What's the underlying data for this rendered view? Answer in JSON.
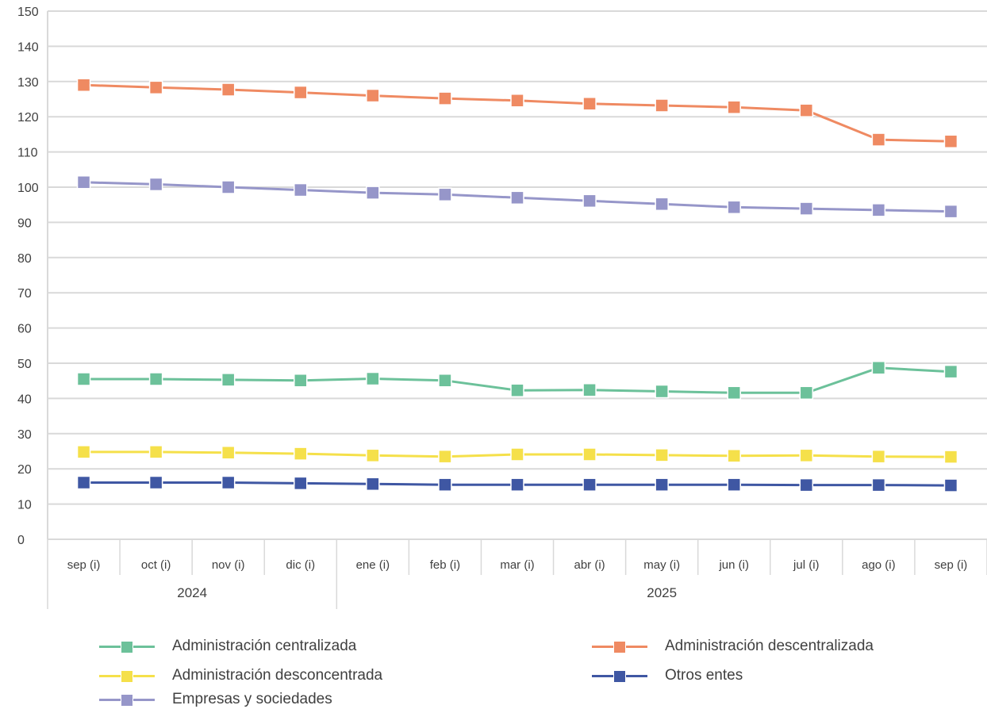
{
  "chart_data": {
    "type": "line",
    "title": "",
    "xlabel": "",
    "ylabel": "",
    "ylim": [
      0,
      150
    ],
    "yticks": [
      0,
      10,
      20,
      30,
      40,
      50,
      60,
      70,
      80,
      90,
      100,
      110,
      120,
      130,
      140,
      150
    ],
    "categories": [
      "sep (i)",
      "oct (i)",
      "nov (i)",
      "dic (i)",
      "ene (i)",
      "feb (i)",
      "mar (i)",
      "abr (i)",
      "may (i)",
      "jun (i)",
      "jul (i)",
      "ago (i)",
      "sep (i)"
    ],
    "year_groups": [
      {
        "label": "2024",
        "count": 4
      },
      {
        "label": "2025",
        "count": 9
      }
    ],
    "grid": true,
    "legend_position": "bottom",
    "series": [
      {
        "name": "Administración centralizada",
        "color": "#6cc19a",
        "values": [
          45.5,
          45.5,
          45.3,
          45.1,
          45.6,
          45.1,
          42.3,
          42.4,
          42.0,
          41.6,
          41.6,
          48.7,
          47.6
        ]
      },
      {
        "name": "Administración descentralizada",
        "color": "#ef8a62",
        "values": [
          129.0,
          128.3,
          127.7,
          126.9,
          126.0,
          125.2,
          124.6,
          123.7,
          123.2,
          122.7,
          121.8,
          113.5,
          113.0
        ]
      },
      {
        "name": "Administración desconcentrada",
        "color": "#f5e04a",
        "values": [
          24.8,
          24.8,
          24.6,
          24.3,
          23.8,
          23.5,
          24.1,
          24.1,
          23.9,
          23.7,
          23.8,
          23.5,
          23.4
        ]
      },
      {
        "name": "Otros entes",
        "color": "#3f57a3",
        "values": [
          16.1,
          16.1,
          16.1,
          15.9,
          15.7,
          15.5,
          15.5,
          15.5,
          15.5,
          15.5,
          15.4,
          15.4,
          15.3
        ]
      },
      {
        "name": "Empresas y sociedades",
        "color": "#9696c9",
        "values": [
          101.4,
          100.8,
          100.0,
          99.2,
          98.4,
          97.9,
          97.0,
          96.1,
          95.2,
          94.3,
          93.9,
          93.5,
          93.1
        ]
      }
    ]
  }
}
